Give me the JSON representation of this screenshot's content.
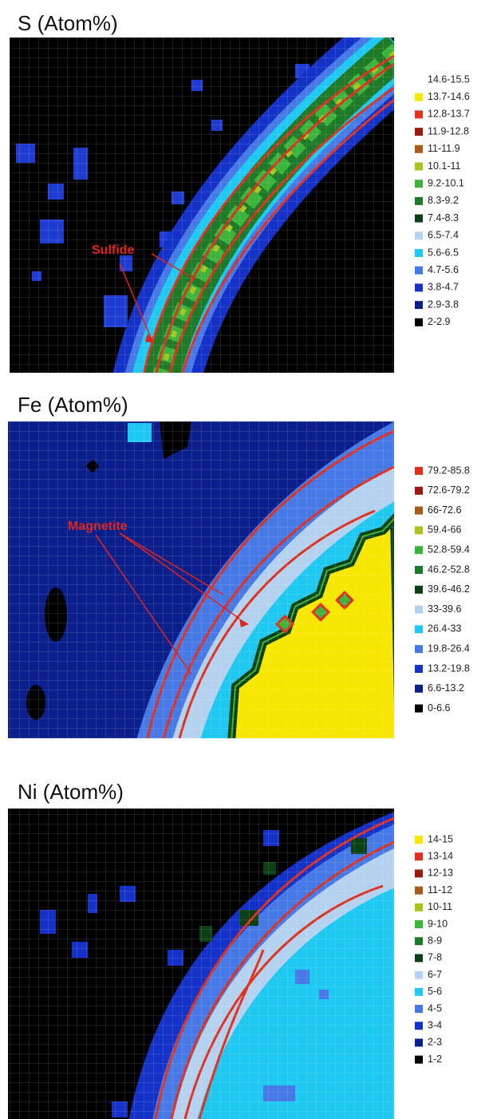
{
  "panels": [
    {
      "title": "S (Atom%)",
      "annotation": "Sulfide",
      "legend": [
        {
          "label": "14.6-15.5",
          "color": "#ffffff"
        },
        {
          "label": "13.7-14.6",
          "color": "#f7e600"
        },
        {
          "label": "12.8-13.7",
          "color": "#e0301e"
        },
        {
          "label": "11.9-12.8",
          "color": "#9b1a10"
        },
        {
          "label": "11-11.9",
          "color": "#a85a1a"
        },
        {
          "label": "10.1-11",
          "color": "#a8c41e"
        },
        {
          "label": "9.2-10.1",
          "color": "#3cb43c"
        },
        {
          "label": "8.3-9.2",
          "color": "#1e7a28"
        },
        {
          "label": "7.4-8.3",
          "color": "#0a4014"
        },
        {
          "label": "6.5-7.4",
          "color": "#b4d2f0"
        },
        {
          "label": "5.6-6.5",
          "color": "#1ec8f0"
        },
        {
          "label": "4.7-5.6",
          "color": "#4678e6"
        },
        {
          "label": "3.8-4.7",
          "color": "#1432c8"
        },
        {
          "label": "2.9-3.8",
          "color": "#0a1e8c"
        },
        {
          "label": "2-2.9",
          "color": "#000000"
        }
      ]
    },
    {
      "title": "Fe (Atom%)",
      "annotation": "Magnetite",
      "legend": [
        {
          "label": "79.2-85.8",
          "color": "#e0301e"
        },
        {
          "label": "72.6-79.2",
          "color": "#9b1a10"
        },
        {
          "label": "66-72.6",
          "color": "#a85a1a"
        },
        {
          "label": "59.4-66",
          "color": "#a8c41e"
        },
        {
          "label": "52.8-59.4",
          "color": "#3cb43c"
        },
        {
          "label": "46.2-52.8",
          "color": "#1e7a28"
        },
        {
          "label": "39.6-46.2",
          "color": "#0a4014"
        },
        {
          "label": "33-39.6",
          "color": "#b4d2f0"
        },
        {
          "label": "26.4-33",
          "color": "#1ec8f0"
        },
        {
          "label": "19.8-26.4",
          "color": "#4678e6"
        },
        {
          "label": "13.2-19.8",
          "color": "#1432c8"
        },
        {
          "label": "6.6-13.2",
          "color": "#0a1e8c"
        },
        {
          "label": "0-6.6",
          "color": "#000000"
        }
      ]
    },
    {
      "title": "Ni (Atom%)",
      "legend": [
        {
          "label": "14-15",
          "color": "#f7e600"
        },
        {
          "label": "13-14",
          "color": "#e0301e"
        },
        {
          "label": "12-13",
          "color": "#9b1a10"
        },
        {
          "label": "11-12",
          "color": "#a85a1a"
        },
        {
          "label": "10-11",
          "color": "#a8c41e"
        },
        {
          "label": "9-10",
          "color": "#3cb43c"
        },
        {
          "label": "8-9",
          "color": "#1e7a28"
        },
        {
          "label": "7-8",
          "color": "#0a4014"
        },
        {
          "label": "6-7",
          "color": "#b4d2f0"
        },
        {
          "label": "5-6",
          "color": "#1ec8f0"
        },
        {
          "label": "4-5",
          "color": "#4678e6"
        },
        {
          "label": "3-4",
          "color": "#1432c8"
        },
        {
          "label": "2-3",
          "color": "#0a1e8c"
        },
        {
          "label": "1-2",
          "color": "#000000"
        }
      ]
    }
  ]
}
